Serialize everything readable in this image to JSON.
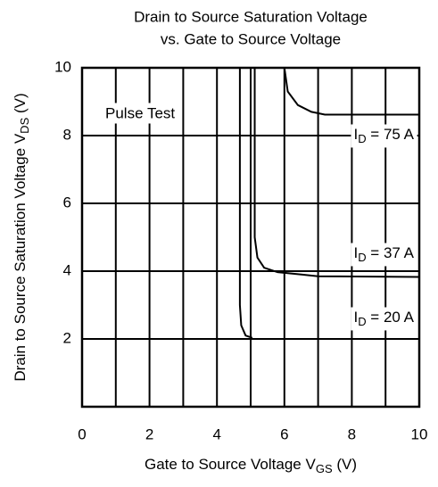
{
  "chart_data": {
    "type": "line",
    "title": [
      "Drain to Source Saturation Voltage",
      "vs. Gate to Source Voltage"
    ],
    "x_label": {
      "main": "Gate to Source Voltage V",
      "sub": "GS",
      "rest": " (V)"
    },
    "y_label": {
      "main": "Drain to Source Saturation Voltage V",
      "sub": "DS",
      "rest": " (V)"
    },
    "annotation": "Pulse Test",
    "xlim": [
      0,
      10
    ],
    "ylim": [
      0,
      10
    ],
    "xticks": [
      0,
      2,
      4,
      6,
      8,
      10
    ],
    "yticks": [
      2,
      4,
      6,
      8,
      10
    ],
    "x_minor_grid": [
      1,
      3,
      5,
      7,
      9
    ],
    "grid": true,
    "color": "#000000",
    "series": [
      {
        "label": {
          "main": "I",
          "sub": "D",
          "rest": " = 75 A"
        },
        "x": [
          6.0,
          6.1,
          6.4,
          6.8,
          7.2,
          10
        ],
        "values": [
          10,
          9.3,
          8.9,
          8.7,
          8.62,
          8.62
        ]
      },
      {
        "label": {
          "main": "I",
          "sub": "D",
          "rest": " = 37 A"
        },
        "x": [
          5.12,
          5.12,
          5.2,
          5.4,
          5.8,
          6.5,
          7,
          10
        ],
        "values": [
          10,
          5,
          4.4,
          4.1,
          3.97,
          3.9,
          3.85,
          3.83
        ]
      },
      {
        "label": {
          "main": "I",
          "sub": "D",
          "rest": " = 20 A"
        },
        "x": [
          4.68,
          4.68,
          4.72,
          4.85,
          5.05
        ],
        "values": [
          10,
          3,
          2.4,
          2.1,
          2.03
        ]
      }
    ]
  }
}
